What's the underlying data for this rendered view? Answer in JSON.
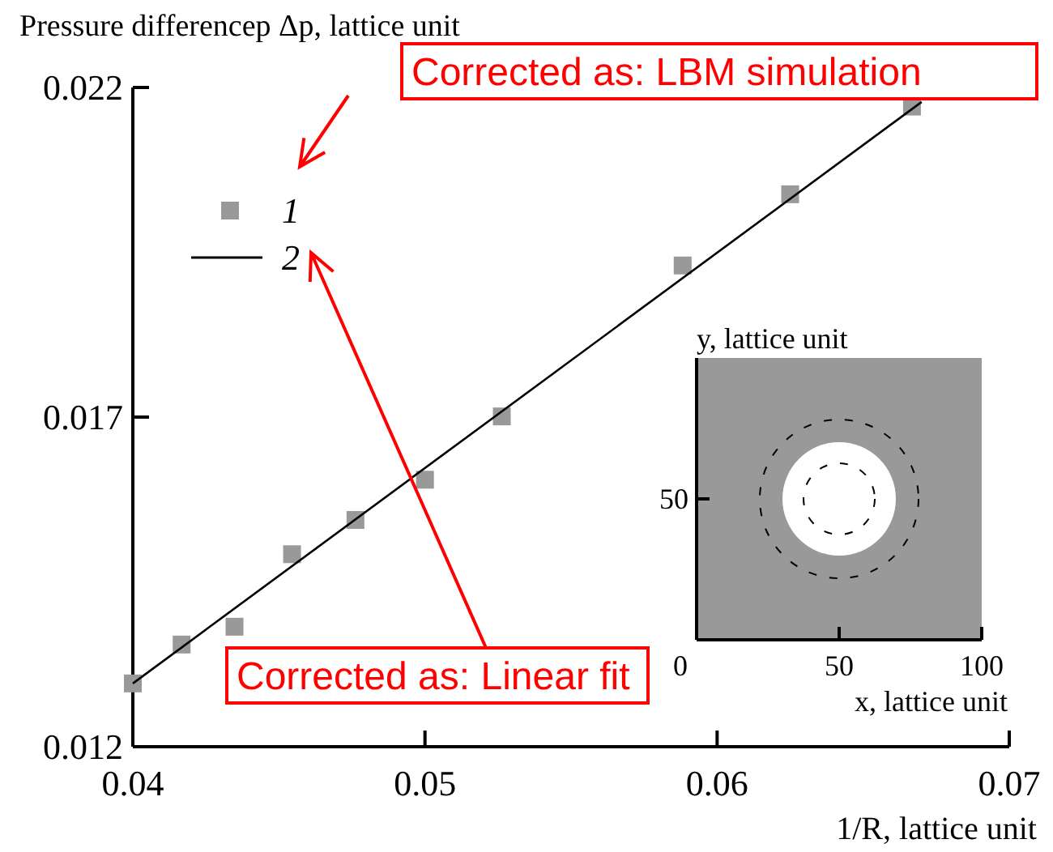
{
  "chart_data": [
    {
      "type": "scatter",
      "xlabel": "1/R, lattice unit",
      "ylabel": "Pressure differencep Δp, lattice unit",
      "xlim": [
        0.04,
        0.07
      ],
      "ylim": [
        0.012,
        0.022
      ],
      "xticks": [
        0.04,
        0.05,
        0.06,
        0.07
      ],
      "yticks": [
        0.012,
        0.017,
        0.022
      ],
      "legend": "top left",
      "annotations": [
        "Corrected as: LBM simulation",
        "Corrected as: Linear fit"
      ],
      "series": [
        {
          "name": "1",
          "color": "#999999",
          "marker": "square",
          "x": [
            0.04,
            0.04167,
            0.04348,
            0.04545,
            0.04762,
            0.05,
            0.05263,
            0.05882,
            0.0625,
            0.06667
          ],
          "values": [
            0.01296,
            0.01355,
            0.01382,
            0.01492,
            0.01544,
            0.01605,
            0.01701,
            0.0193,
            0.02038,
            0.02171
          ]
        },
        {
          "name": "2",
          "type": "line",
          "color": "#000000",
          "x": [
            0.04,
            0.067
          ],
          "values": [
            0.01296,
            0.02178
          ]
        }
      ]
    },
    {
      "type": "other",
      "xlabel": "x, lattice unit",
      "ylabel": "y, lattice unit",
      "annotations": [
        "0",
        "50",
        "100",
        "50"
      ]
    }
  ]
}
